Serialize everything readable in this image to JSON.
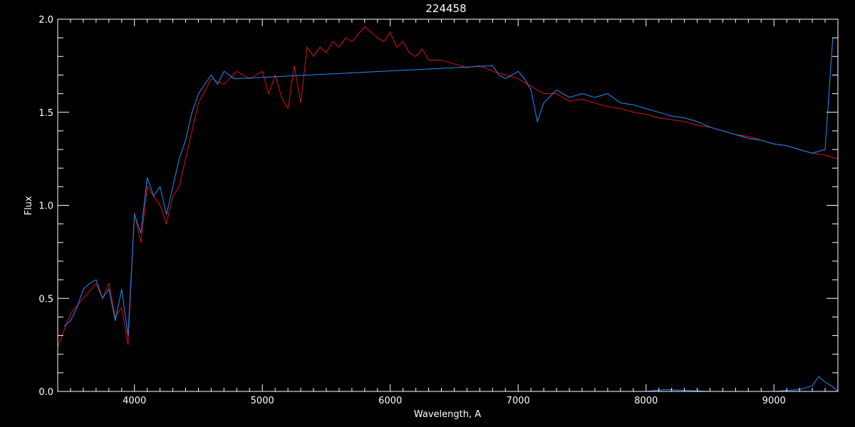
{
  "chart_data": {
    "type": "line",
    "title": "224458",
    "xlabel": "Wavelength, A",
    "ylabel": "Flux",
    "xlim": [
      3400,
      9500
    ],
    "ylim": [
      0,
      2.0
    ],
    "x_ticks": [
      4000,
      5000,
      6000,
      7000,
      8000,
      9000
    ],
    "x_tick_labels": [
      "4000",
      "5000",
      "6000",
      "7000",
      "8000",
      "9000"
    ],
    "y_ticks": [
      0,
      0.5,
      1.0,
      1.5,
      2.0
    ],
    "y_tick_labels": [
      "0.0",
      "0.5",
      "1.0",
      "1.5",
      "2.0"
    ],
    "grid": false,
    "colors": {
      "background": "#000000",
      "axes": "#ffffff",
      "observed": "#ffffff",
      "model_flux": "#1e90ff",
      "template": "#dd1111",
      "noise": "#1e90ff"
    },
    "series": [
      {
        "color_key": "template",
        "x": [
          3400,
          3500,
          3600,
          3700,
          3750,
          3800,
          3850,
          3900,
          3950,
          4000,
          4050,
          4100,
          4150,
          4200,
          4250,
          4300,
          4350,
          4400,
          4500,
          4600,
          4700,
          4800,
          4900,
          5000,
          5050,
          5100,
          5150,
          5200,
          5250,
          5300,
          5350,
          5400,
          5450,
          5500,
          5550,
          5600,
          5650,
          5700,
          5750,
          5800,
          5850,
          5900,
          5950,
          6000,
          6050,
          6100,
          6150,
          6200,
          6250,
          6300,
          6400,
          6500,
          6600,
          6700,
          6800,
          6900,
          7000,
          7100,
          7200,
          7300,
          7400,
          7500,
          7600,
          7700,
          7800,
          7900,
          8000,
          8100,
          8200,
          8300,
          8400,
          8500,
          8600,
          8700,
          8800,
          8900,
          9000,
          9100,
          9200,
          9300,
          9400,
          9500
        ],
        "values": [
          0.24,
          0.42,
          0.5,
          0.58,
          0.5,
          0.58,
          0.4,
          0.45,
          0.25,
          0.96,
          0.8,
          1.1,
          1.05,
          1.0,
          0.9,
          1.05,
          1.1,
          1.25,
          1.55,
          1.68,
          1.65,
          1.72,
          1.68,
          1.72,
          1.6,
          1.7,
          1.58,
          1.52,
          1.75,
          1.55,
          1.85,
          1.8,
          1.85,
          1.82,
          1.88,
          1.85,
          1.9,
          1.88,
          1.92,
          1.96,
          1.93,
          1.9,
          1.88,
          1.93,
          1.85,
          1.88,
          1.82,
          1.8,
          1.84,
          1.78,
          1.78,
          1.76,
          1.74,
          1.75,
          1.72,
          1.7,
          1.68,
          1.64,
          1.6,
          1.6,
          1.56,
          1.57,
          1.55,
          1.53,
          1.52,
          1.5,
          1.49,
          1.47,
          1.46,
          1.45,
          1.43,
          1.42,
          1.4,
          1.38,
          1.37,
          1.35,
          1.33,
          1.32,
          1.3,
          1.28,
          1.27,
          1.25
        ]
      },
      {
        "color_key": "model_flux",
        "x": [
          3450,
          3500,
          3550,
          3600,
          3650,
          3700,
          3750,
          3800,
          3850,
          3900,
          3950,
          4000,
          4050,
          4100,
          4150,
          4200,
          4250,
          4300,
          4350,
          4400,
          4450,
          4500,
          4550,
          4600,
          4650,
          4700,
          4780,
          6800,
          6850,
          6900,
          7000,
          7050,
          7100,
          7150,
          7200,
          7300,
          7400,
          7500,
          7600,
          7700,
          7800,
          7900,
          8000,
          8100,
          8200,
          8300,
          8400,
          8500,
          8600,
          8700,
          8800,
          8900,
          9000,
          9100,
          9200,
          9300,
          9400,
          9460
        ],
        "values": [
          0.35,
          0.38,
          0.45,
          0.55,
          0.58,
          0.6,
          0.5,
          0.55,
          0.38,
          0.55,
          0.3,
          0.95,
          0.85,
          1.15,
          1.05,
          1.1,
          0.95,
          1.1,
          1.25,
          1.35,
          1.5,
          1.6,
          1.65,
          1.7,
          1.65,
          1.72,
          1.68,
          1.75,
          1.7,
          1.68,
          1.72,
          1.68,
          1.62,
          1.45,
          1.55,
          1.62,
          1.58,
          1.6,
          1.58,
          1.6,
          1.55,
          1.54,
          1.52,
          1.5,
          1.48,
          1.47,
          1.45,
          1.42,
          1.4,
          1.38,
          1.36,
          1.35,
          1.33,
          1.32,
          1.3,
          1.28,
          1.3,
          1.9
        ]
      },
      {
        "color_key": "noise",
        "x": [
          3450,
          3800,
          4200,
          4780,
          6800,
          7500,
          8000,
          8150,
          8500,
          9000,
          9200,
          9300,
          9350,
          9400,
          9450,
          9500
        ],
        "values": [
          0.0,
          0.0,
          0.0,
          0.0,
          0.0,
          0.0,
          0.0,
          0.01,
          0.0,
          0.0,
          0.01,
          0.03,
          0.08,
          0.05,
          0.03,
          0.0
        ]
      }
    ]
  }
}
